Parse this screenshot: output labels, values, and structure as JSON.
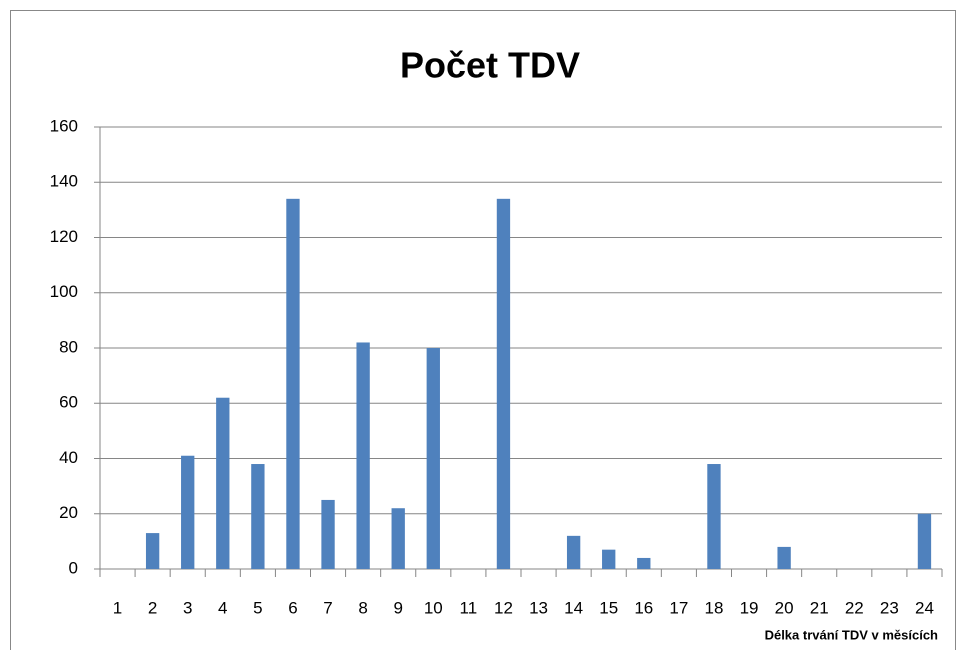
{
  "chart_data": {
    "type": "bar",
    "title": "Počet TDV",
    "x_label": "Délka trvání TDV v měsících",
    "categories": [
      "1",
      "2",
      "3",
      "4",
      "5",
      "6",
      "7",
      "8",
      "9",
      "10",
      "11",
      "12",
      "13",
      "14",
      "15",
      "16",
      "17",
      "18",
      "19",
      "20",
      "21",
      "22",
      "23",
      "24"
    ],
    "values": [
      0,
      13,
      41,
      62,
      38,
      134,
      25,
      82,
      22,
      80,
      0,
      134,
      0,
      12,
      7,
      4,
      0,
      38,
      0,
      8,
      0,
      0,
      0,
      20
    ],
    "color": "#4f81bd",
    "ylim": [
      0,
      160
    ],
    "yticks": [
      0,
      20,
      40,
      60,
      80,
      100,
      120,
      140,
      160
    ],
    "grid": true
  }
}
